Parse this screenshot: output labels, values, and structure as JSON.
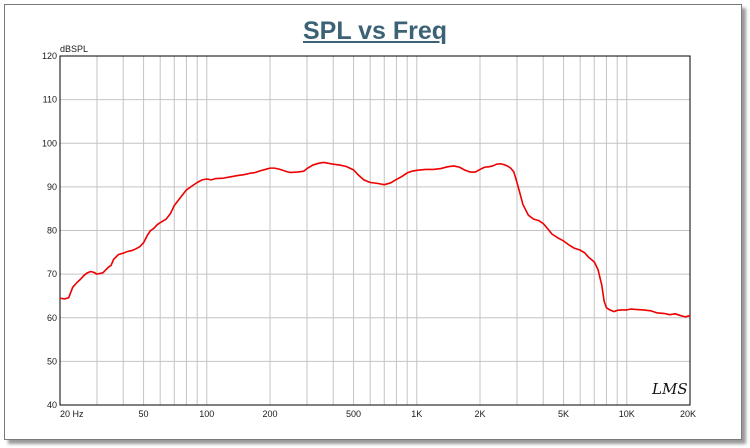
{
  "chart_data": {
    "type": "line",
    "title": "SPL vs Freq",
    "ylabel": "dBSPL",
    "xlabel": "",
    "x_scale": "log",
    "xlim": [
      20,
      20000
    ],
    "ylim": [
      40,
      120
    ],
    "grid": true,
    "x_ticks": [
      {
        "value": 20,
        "label": "20 Hz"
      },
      {
        "value": 50,
        "label": "50"
      },
      {
        "value": 100,
        "label": "100"
      },
      {
        "value": 200,
        "label": "200"
      },
      {
        "value": 500,
        "label": "500"
      },
      {
        "value": 1000,
        "label": "1K"
      },
      {
        "value": 2000,
        "label": "2K"
      },
      {
        "value": 5000,
        "label": "5K"
      },
      {
        "value": 10000,
        "label": "10K"
      },
      {
        "value": 20000,
        "label": "20K"
      }
    ],
    "y_ticks": [
      {
        "value": 40,
        "label": "40"
      },
      {
        "value": 50,
        "label": "50"
      },
      {
        "value": 60,
        "label": "60"
      },
      {
        "value": 70,
        "label": "70"
      },
      {
        "value": 80,
        "label": "80"
      },
      {
        "value": 90,
        "label": "90"
      },
      {
        "value": 100,
        "label": "100"
      },
      {
        "value": 110,
        "label": "110"
      },
      {
        "value": 120,
        "label": "120"
      }
    ],
    "series": [
      {
        "color": "#ee0000",
        "points": [
          [
            20,
            64.5
          ],
          [
            21,
            64.3
          ],
          [
            22,
            64.6
          ],
          [
            23,
            67.0
          ],
          [
            24,
            68.0
          ],
          [
            25,
            68.8
          ],
          [
            26,
            69.7
          ],
          [
            27,
            70.3
          ],
          [
            28,
            70.6
          ],
          [
            29,
            70.4
          ],
          [
            30,
            70.0
          ],
          [
            32,
            70.3
          ],
          [
            34,
            71.6
          ],
          [
            35,
            72.0
          ],
          [
            36,
            73.4
          ],
          [
            38,
            74.5
          ],
          [
            40,
            74.8
          ],
          [
            42,
            75.2
          ],
          [
            44,
            75.4
          ],
          [
            46,
            75.8
          ],
          [
            48,
            76.3
          ],
          [
            50,
            77.2
          ],
          [
            52,
            78.8
          ],
          [
            54,
            80.0
          ],
          [
            56,
            80.5
          ],
          [
            58,
            81.3
          ],
          [
            60,
            81.8
          ],
          [
            64,
            82.6
          ],
          [
            67,
            83.8
          ],
          [
            70,
            85.7
          ],
          [
            75,
            87.6
          ],
          [
            80,
            89.3
          ],
          [
            85,
            90.2
          ],
          [
            90,
            91.0
          ],
          [
            95,
            91.6
          ],
          [
            100,
            91.8
          ],
          [
            105,
            91.6
          ],
          [
            110,
            91.9
          ],
          [
            120,
            92.0
          ],
          [
            130,
            92.3
          ],
          [
            140,
            92.6
          ],
          [
            150,
            92.8
          ],
          [
            160,
            93.1
          ],
          [
            170,
            93.3
          ],
          [
            180,
            93.7
          ],
          [
            190,
            94.0
          ],
          [
            200,
            94.3
          ],
          [
            210,
            94.3
          ],
          [
            220,
            94.1
          ],
          [
            230,
            93.8
          ],
          [
            240,
            93.5
          ],
          [
            250,
            93.3
          ],
          [
            270,
            93.4
          ],
          [
            290,
            93.6
          ],
          [
            300,
            94.2
          ],
          [
            320,
            95.0
          ],
          [
            340,
            95.4
          ],
          [
            360,
            95.6
          ],
          [
            380,
            95.4
          ],
          [
            400,
            95.2
          ],
          [
            430,
            95.0
          ],
          [
            460,
            94.7
          ],
          [
            500,
            93.9
          ],
          [
            530,
            92.6
          ],
          [
            560,
            91.6
          ],
          [
            600,
            91.0
          ],
          [
            650,
            90.8
          ],
          [
            700,
            90.5
          ],
          [
            750,
            90.9
          ],
          [
            800,
            91.7
          ],
          [
            850,
            92.4
          ],
          [
            900,
            93.2
          ],
          [
            950,
            93.6
          ],
          [
            1000,
            93.8
          ],
          [
            1100,
            94.0
          ],
          [
            1200,
            94.0
          ],
          [
            1300,
            94.2
          ],
          [
            1400,
            94.6
          ],
          [
            1500,
            94.8
          ],
          [
            1600,
            94.5
          ],
          [
            1700,
            93.8
          ],
          [
            1800,
            93.4
          ],
          [
            1900,
            93.4
          ],
          [
            2000,
            94.0
          ],
          [
            2100,
            94.5
          ],
          [
            2200,
            94.6
          ],
          [
            2300,
            94.8
          ],
          [
            2400,
            95.2
          ],
          [
            2500,
            95.3
          ],
          [
            2600,
            95.1
          ],
          [
            2700,
            94.8
          ],
          [
            2800,
            94.3
          ],
          [
            2900,
            93.4
          ],
          [
            3000,
            91.0
          ],
          [
            3100,
            88.5
          ],
          [
            3200,
            86.0
          ],
          [
            3400,
            83.5
          ],
          [
            3600,
            82.6
          ],
          [
            3800,
            82.3
          ],
          [
            4000,
            81.6
          ],
          [
            4200,
            80.4
          ],
          [
            4400,
            79.2
          ],
          [
            4700,
            78.3
          ],
          [
            5000,
            77.6
          ],
          [
            5300,
            76.7
          ],
          [
            5600,
            76.0
          ],
          [
            6000,
            75.5
          ],
          [
            6300,
            74.9
          ],
          [
            6600,
            73.8
          ],
          [
            7000,
            72.8
          ],
          [
            7300,
            71.0
          ],
          [
            7600,
            67.5
          ],
          [
            7800,
            63.8
          ],
          [
            8000,
            62.3
          ],
          [
            8300,
            61.8
          ],
          [
            8700,
            61.4
          ],
          [
            9000,
            61.7
          ],
          [
            9500,
            61.8
          ],
          [
            10000,
            61.8
          ],
          [
            10500,
            62.0
          ],
          [
            11000,
            61.9
          ],
          [
            12000,
            61.8
          ],
          [
            13000,
            61.6
          ],
          [
            14000,
            61.1
          ],
          [
            15000,
            61.0
          ],
          [
            16000,
            60.7
          ],
          [
            17000,
            60.9
          ],
          [
            18000,
            60.5
          ],
          [
            19000,
            60.2
          ],
          [
            20000,
            60.5
          ]
        ]
      }
    ],
    "annotation": "LMS"
  }
}
